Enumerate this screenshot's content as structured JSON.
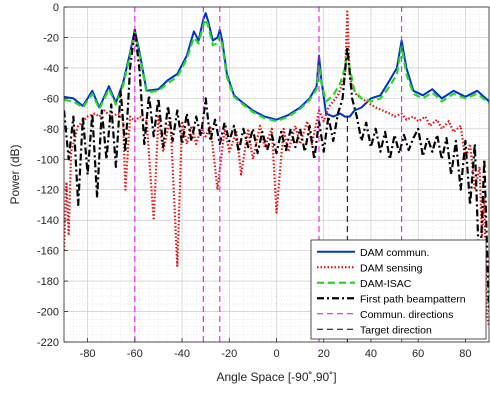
{
  "chart_data": {
    "type": "line",
    "title": "",
    "xlabel": "Angle Space [-90˚,90˚]",
    "ylabel": "Power (dB)",
    "xlim": [
      -90,
      90
    ],
    "ylim": [
      -220,
      0
    ],
    "x_ticks": [
      -80,
      -60,
      -40,
      -20,
      0,
      20,
      40,
      60,
      80
    ],
    "y_ticks": [
      0,
      -20,
      -40,
      -60,
      -80,
      -100,
      -120,
      -140,
      -160,
      -180,
      -200,
      -220
    ],
    "grid": true,
    "minor_grid": true,
    "legend_position": "bottom-right",
    "series": [
      {
        "name": "DAM commun.",
        "color": "#0033cc",
        "style": "solid",
        "x": [
          -90,
          -86,
          -82,
          -78,
          -75,
          -71,
          -68,
          -65,
          -62,
          -60,
          -58,
          -55,
          -50,
          -46,
          -42,
          -38,
          -35,
          -33,
          -31,
          -30,
          -29,
          -27,
          -25,
          -24,
          -23,
          -21,
          -18,
          -15,
          -10,
          -5,
          0,
          5,
          10,
          14,
          17,
          18,
          19,
          21,
          24,
          27,
          29,
          30,
          31,
          33,
          36,
          40,
          44,
          48,
          51,
          53,
          55,
          58,
          62,
          66,
          70,
          75,
          80,
          85,
          90
        ],
        "y": [
          -59,
          -60,
          -65,
          -55,
          -66,
          -52,
          -63,
          -50,
          -30,
          -15,
          -30,
          -55,
          -54,
          -48,
          -44,
          -32,
          -16,
          -22,
          -8,
          -4,
          -9,
          -22,
          -20,
          -15,
          -22,
          -44,
          -58,
          -62,
          -68,
          -72,
          -74,
          -71,
          -66,
          -60,
          -52,
          -32,
          -48,
          -70,
          -72,
          -70,
          -72,
          -72,
          -72,
          -68,
          -66,
          -60,
          -58,
          -48,
          -40,
          -22,
          -40,
          -55,
          -58,
          -54,
          -60,
          -55,
          -59,
          -55,
          -62
        ]
      },
      {
        "name": "DAM sensing",
        "color": "#ee1111",
        "style": "dotted",
        "x": [
          -90,
          -89,
          -88,
          -87,
          -84,
          -80,
          -77,
          -75,
          -73,
          -70,
          -67,
          -65,
          -64,
          -62,
          -60,
          -58,
          -55,
          -52,
          -50,
          -48,
          -45,
          -42,
          -40,
          -38,
          -36,
          -34,
          -32,
          -30,
          -28,
          -25,
          -22,
          -20,
          -17,
          -15,
          -12,
          -10,
          -7,
          -5,
          -2,
          0,
          3,
          5,
          8,
          10,
          13,
          15,
          18,
          20,
          22,
          24,
          26,
          27,
          28,
          29,
          30,
          31,
          32,
          33,
          34,
          36,
          38,
          40,
          42,
          45,
          48,
          50,
          53,
          55,
          58,
          60,
          63,
          65,
          68,
          70,
          73,
          75,
          78,
          80,
          82,
          84,
          86,
          87,
          88,
          89,
          90
        ],
        "y": [
          -160,
          -115,
          -150,
          -95,
          -78,
          -72,
          -70,
          -72,
          -68,
          -72,
          -70,
          -74,
          -120,
          -72,
          -75,
          -72,
          -75,
          -140,
          -72,
          -95,
          -72,
          -170,
          -75,
          -90,
          -78,
          -90,
          -80,
          -85,
          -78,
          -120,
          -80,
          -95,
          -82,
          -110,
          -80,
          -100,
          -78,
          -92,
          -80,
          -135,
          -80,
          -95,
          -78,
          -90,
          -75,
          -90,
          -68,
          -75,
          -66,
          -62,
          -58,
          -54,
          -50,
          -45,
          -3,
          -45,
          -52,
          -55,
          -58,
          -60,
          -62,
          -64,
          -66,
          -68,
          -70,
          -72,
          -70,
          -74,
          -72,
          -75,
          -72,
          -78,
          -74,
          -80,
          -75,
          -82,
          -78,
          -100,
          -90,
          -120,
          -105,
          -150,
          -125,
          -200,
          -210
        ]
      },
      {
        "name": "DAM-ISAC",
        "color": "#22dd22",
        "style": "dashed",
        "x": [
          -90,
          -86,
          -82,
          -78,
          -75,
          -71,
          -68,
          -65,
          -62,
          -60,
          -58,
          -55,
          -50,
          -46,
          -42,
          -38,
          -35,
          -33,
          -31,
          -30,
          -29,
          -27,
          -25,
          -24,
          -23,
          -21,
          -18,
          -15,
          -10,
          -5,
          0,
          5,
          10,
          14,
          17,
          18,
          19,
          21,
          24,
          27,
          29,
          30,
          31,
          33,
          36,
          40,
          44,
          48,
          51,
          53,
          55,
          58,
          62,
          66,
          70,
          75,
          80,
          85,
          90
        ],
        "y": [
          -61,
          -62,
          -66,
          -57,
          -67,
          -54,
          -64,
          -52,
          -32,
          -17,
          -32,
          -56,
          -55,
          -50,
          -46,
          -34,
          -20,
          -24,
          -12,
          -8,
          -12,
          -25,
          -24,
          -19,
          -25,
          -46,
          -59,
          -63,
          -69,
          -73,
          -75,
          -72,
          -67,
          -61,
          -54,
          -38,
          -50,
          -62,
          -58,
          -50,
          -40,
          -30,
          -40,
          -55,
          -60,
          -62,
          -60,
          -52,
          -44,
          -26,
          -44,
          -57,
          -60,
          -56,
          -62,
          -57,
          -60,
          -57,
          -63
        ]
      },
      {
        "name": "First path beampattern",
        "color": "#000000",
        "style": "dashdot",
        "x": [
          -90,
          -88,
          -86,
          -84,
          -82,
          -80,
          -78,
          -76,
          -74,
          -72,
          -70,
          -68,
          -66,
          -64,
          -62,
          -60,
          -58,
          -56,
          -54,
          -52,
          -50,
          -48,
          -46,
          -44,
          -42,
          -40,
          -38,
          -36,
          -34,
          -32,
          -30,
          -28,
          -26,
          -24,
          -22,
          -20,
          -18,
          -16,
          -14,
          -12,
          -10,
          -8,
          -6,
          -4,
          -2,
          0,
          2,
          4,
          6,
          8,
          10,
          12,
          14,
          16,
          18,
          20,
          22,
          24,
          26,
          28,
          30,
          32,
          34,
          36,
          38,
          40,
          42,
          44,
          46,
          48,
          50,
          52,
          54,
          56,
          58,
          60,
          62,
          64,
          66,
          68,
          70,
          72,
          74,
          76,
          78,
          80,
          82,
          84,
          86,
          88,
          90
        ],
        "y": [
          -68,
          -100,
          -72,
          -130,
          -72,
          -110,
          -70,
          -125,
          -68,
          -100,
          -64,
          -105,
          -55,
          -95,
          -40,
          -15,
          -42,
          -90,
          -58,
          -85,
          -60,
          -92,
          -65,
          -88,
          -68,
          -90,
          -70,
          -88,
          -72,
          -85,
          -60,
          -88,
          -74,
          -90,
          -76,
          -88,
          -78,
          -95,
          -80,
          -92,
          -80,
          -96,
          -82,
          -94,
          -84,
          -96,
          -82,
          -94,
          -80,
          -92,
          -80,
          -95,
          -78,
          -100,
          -75,
          -95,
          -72,
          -88,
          -70,
          -60,
          -26,
          -60,
          -72,
          -88,
          -76,
          -92,
          -80,
          -95,
          -82,
          -100,
          -84,
          -96,
          -84,
          -94,
          -86,
          -80,
          -98,
          -86,
          -95,
          -84,
          -100,
          -86,
          -110,
          -88,
          -120,
          -88,
          -130,
          -90,
          -180,
          -100,
          -200
        ]
      },
      {
        "name": "Commun. directions",
        "color": "#ee00ee",
        "style": "dashed-vertical",
        "x": [
          -60,
          -31,
          -24,
          18,
          53
        ],
        "y_range": [
          -220,
          0
        ]
      },
      {
        "name": "Target direction",
        "color": "#000000",
        "style": "dashed-vertical",
        "x": [
          30
        ],
        "y_range": [
          -220,
          -70
        ]
      }
    ]
  }
}
